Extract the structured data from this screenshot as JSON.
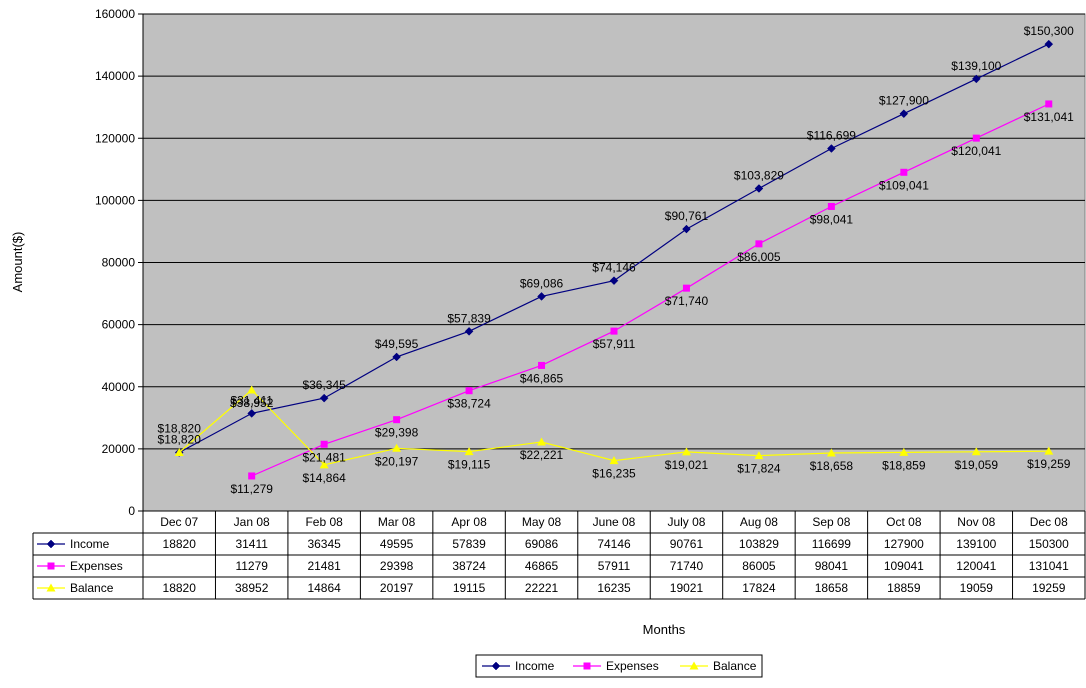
{
  "chart_data": {
    "type": "line",
    "title": "",
    "xlabel": "Months",
    "ylabel": "Amount($)",
    "ylim": [
      0,
      160000
    ],
    "y_ticks": [
      "0",
      "20000",
      "40000",
      "60000",
      "80000",
      "100000",
      "120000",
      "140000",
      "160000"
    ],
    "grid": true,
    "legend_position": "bottom",
    "plot_background": "#C0C0C0",
    "categories": [
      "Dec 07",
      "Jan 08",
      "Feb 08",
      "Mar 08",
      "Apr 08",
      "May 08",
      "June 08",
      "July 08",
      "Aug 08",
      "Sep 08",
      "Oct 08",
      "Nov 08",
      "Dec 08"
    ],
    "series": [
      {
        "name": "Income",
        "color": "#000080",
        "marker": "diamond",
        "values": [
          18820,
          31411,
          36345,
          49595,
          57839,
          69086,
          74146,
          90761,
          103829,
          116699,
          127900,
          139100,
          150300
        ],
        "labels": [
          "$18,820",
          "$31,411",
          "$36,345",
          "$49,595",
          "$57,839",
          "$69,086",
          "$74,146",
          "$90,761",
          "$103,829",
          "$116,699",
          "$127,900",
          "$139,100",
          "$150,300"
        ],
        "table": [
          "18820",
          "31411",
          "36345",
          "49595",
          "57839",
          "69086",
          "74146",
          "90761",
          "103829",
          "116699",
          "127900",
          "139100",
          "150300"
        ]
      },
      {
        "name": "Expenses",
        "color": "#FF00FF",
        "marker": "square",
        "values": [
          null,
          11279,
          21481,
          29398,
          38724,
          46865,
          57911,
          71740,
          86005,
          98041,
          109041,
          120041,
          131041
        ],
        "labels": [
          "",
          "$11,279",
          "$21,481",
          "$29,398",
          "$38,724",
          "$46,865",
          "$57,911",
          "$71,740",
          "$86,005",
          "$98,041",
          "$109,041",
          "$120,041",
          "$131,041"
        ],
        "table": [
          "",
          "11279",
          "21481",
          "29398",
          "38724",
          "46865",
          "57911",
          "71740",
          "86005",
          "98041",
          "109041",
          "120041",
          "131041"
        ]
      },
      {
        "name": "Balance",
        "color": "#FFFF00",
        "marker": "triangle",
        "values": [
          18820,
          38952,
          14864,
          20197,
          19115,
          22221,
          16235,
          19021,
          17824,
          18658,
          18859,
          19059,
          19259
        ],
        "labels": [
          "$18,820",
          "$38,952",
          "$14,864",
          "$20,197",
          "$19,115",
          "$22,221",
          "$16,235",
          "$19,021",
          "$17,824",
          "$18,658",
          "$18,859",
          "$19,059",
          "$19,259"
        ],
        "table": [
          "18820",
          "38952",
          "14864",
          "20197",
          "19115",
          "22221",
          "16235",
          "19021",
          "17824",
          "18658",
          "18859",
          "19059",
          "19259"
        ]
      }
    ]
  }
}
